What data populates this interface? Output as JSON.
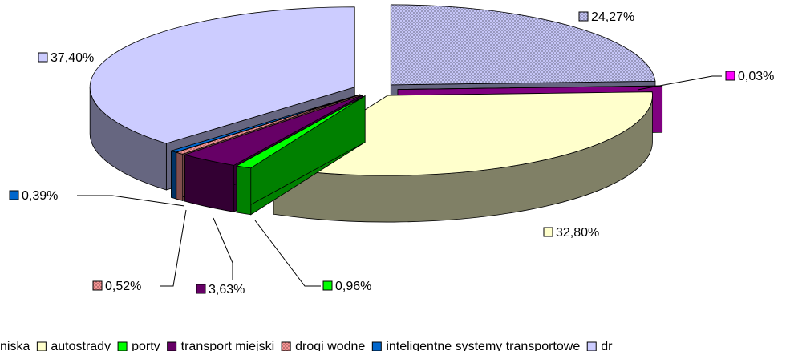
{
  "chart_data": {
    "type": "pie",
    "categories": [
      null,
      "niska",
      "autostrady",
      "porty",
      "transport miejski",
      "drogi wodne",
      "inteligentne systemy transportowe",
      "dr"
    ],
    "values": [
      24.27,
      0.03,
      32.8,
      0.96,
      3.63,
      0.52,
      0.39,
      37.4
    ],
    "value_labels": [
      "24,27%",
      "0,03%",
      "32,80%",
      "0,96%",
      "3,63%",
      "0,52%",
      "0,39%",
      "37,40%"
    ],
    "colors": [
      "#ccccff",
      "#ff00ff",
      "#ffffcc",
      "#00ff00",
      "#660066",
      "#ff9999",
      "#0066cc",
      "#ccccff"
    ],
    "hatched": [
      true,
      false,
      false,
      false,
      false,
      true,
      false,
      false
    ],
    "legend": "bottom"
  }
}
